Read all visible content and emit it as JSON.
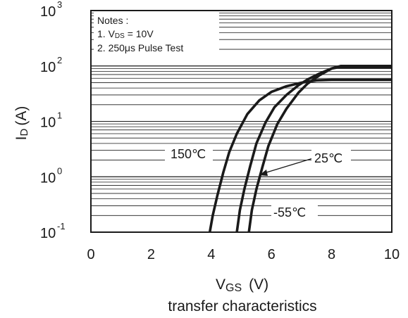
{
  "chart_data": {
    "type": "line",
    "title": "",
    "caption": "transfer characteristics",
    "xlabel": {
      "main": "V",
      "sub": "GS",
      "unit": "(V)"
    },
    "ylabel": {
      "main": "I",
      "sub": "D",
      "unit": "(A)"
    },
    "xlim": [
      0,
      10
    ],
    "ylim": [
      0.1,
      1000
    ],
    "yscale": "log",
    "grid": "horizontal-log",
    "x_ticks": [
      {
        "value": 0,
        "label": "0"
      },
      {
        "value": 2,
        "label": "2"
      },
      {
        "value": 4,
        "label": "4"
      },
      {
        "value": 6,
        "label": "6"
      },
      {
        "value": 8,
        "label": "8"
      },
      {
        "value": 10,
        "label": "10"
      }
    ],
    "y_ticks": [
      {
        "value": 0.1,
        "base": "10",
        "exp": "-1"
      },
      {
        "value": 1,
        "base": "10",
        "exp": "0"
      },
      {
        "value": 10,
        "base": "10",
        "exp": "1"
      },
      {
        "value": 100,
        "base": "10",
        "exp": "2"
      },
      {
        "value": 1000,
        "base": "10",
        "exp": "3"
      }
    ],
    "notes": {
      "heading": "Notes :",
      "line1_prefix": "1. V",
      "line1_sub": "DS",
      "line1_suffix": " = 10V",
      "line2": "2. 250μs Pulse Test"
    },
    "series": [
      {
        "name": "150℃",
        "x": [
          3.95,
          4.05,
          4.2,
          4.4,
          4.6,
          4.85,
          5.2,
          5.6,
          6.0,
          6.5,
          7.0,
          7.5,
          8.0,
          9.0,
          10.0
        ],
        "y": [
          0.1,
          0.2,
          0.45,
          1.2,
          2.8,
          6.0,
          13.5,
          24,
          34,
          43,
          50,
          55,
          56,
          56,
          56
        ]
      },
      {
        "name": "25℃",
        "x": [
          4.85,
          4.95,
          5.1,
          5.3,
          5.5,
          5.8,
          6.1,
          6.5,
          6.9,
          7.2,
          7.6,
          8.0,
          8.2,
          9.0,
          10.0
        ],
        "y": [
          0.1,
          0.25,
          0.6,
          1.6,
          4.0,
          9.5,
          18,
          30,
          45,
          57,
          73,
          90,
          94,
          94,
          94
        ]
      },
      {
        "name": "-55℃",
        "x": [
          5.25,
          5.35,
          5.5,
          5.7,
          5.9,
          6.2,
          6.5,
          6.9,
          7.2,
          7.6,
          8.0,
          8.3,
          9.0,
          10.0
        ],
        "y": [
          0.1,
          0.25,
          0.6,
          1.5,
          3.6,
          9.0,
          17,
          33,
          48,
          68,
          90,
          100,
          100,
          100
        ]
      }
    ]
  }
}
